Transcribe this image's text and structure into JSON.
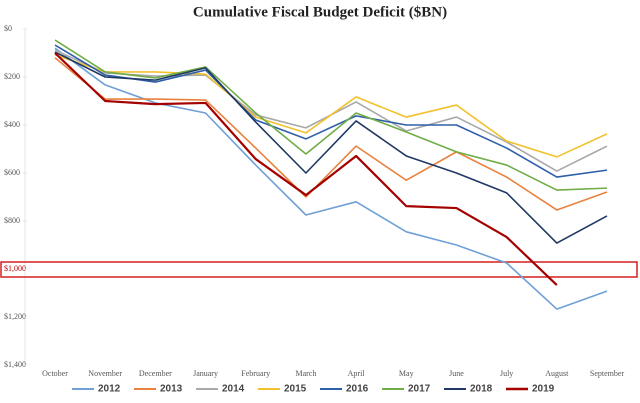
{
  "chart_data": {
    "type": "line",
    "title": "Cumulative Fiscal Budget Deficit ($BN)",
    "categories": [
      "October",
      "November",
      "December",
      "January",
      "February",
      "March",
      "April",
      "May",
      "June",
      "July",
      "August",
      "September"
    ],
    "ylim": [
      0,
      1400
    ],
    "y_inverted": true,
    "yticks": [
      {
        "value": 0,
        "label": "$0"
      },
      {
        "value": 200,
        "label": "$200"
      },
      {
        "value": 400,
        "label": "$400"
      },
      {
        "value": 600,
        "label": "$600"
      },
      {
        "value": 800,
        "label": "$800"
      },
      {
        "value": 1000,
        "label": "$1,000"
      },
      {
        "value": 1200,
        "label": "$1,200"
      },
      {
        "value": 1400,
        "label": "$1,400"
      }
    ],
    "ytick_colors": [
      "#555555",
      "#555555",
      "#555555",
      "#555555",
      "#555555",
      "#c00000",
      "#555555",
      "#555555"
    ],
    "grid": false,
    "legend": "bottom",
    "series": [
      {
        "name": "2012",
        "color": "#6fa0d6",
        "values": [
          80,
          233,
          308,
          350,
          567,
          775,
          720,
          845,
          900,
          975,
          1167,
          1092
        ]
      },
      {
        "name": "2013",
        "color": "#e8823e",
        "values": [
          120,
          292,
          292,
          296,
          496,
          700,
          488,
          630,
          512,
          617,
          754,
          679
        ]
      },
      {
        "name": "2014",
        "color": "#a9a9a9",
        "values": [
          88,
          183,
          196,
          192,
          358,
          412,
          304,
          425,
          367,
          471,
          592,
          488
        ]
      },
      {
        "name": "2015",
        "color": "#f2c12e",
        "values": [
          108,
          179,
          179,
          188,
          367,
          433,
          283,
          367,
          317,
          467,
          533,
          437
        ]
      },
      {
        "name": "2016",
        "color": "#2f5fa8",
        "values": [
          67,
          192,
          221,
          171,
          379,
          458,
          362,
          400,
          400,
          496,
          617,
          588
        ]
      },
      {
        "name": "2017",
        "color": "#70ad47",
        "values": [
          46,
          179,
          204,
          158,
          350,
          521,
          350,
          429,
          512,
          567,
          671,
          663
        ]
      },
      {
        "name": "2018",
        "color": "#1f3864",
        "values": [
          96,
          200,
          213,
          162,
          388,
          600,
          383,
          529,
          600,
          683,
          892,
          779
        ]
      },
      {
        "name": "2019",
        "color": "#a50000",
        "values": [
          100,
          300,
          313,
          308,
          542,
          692,
          529,
          738,
          746,
          867,
          1067,
          null
        ]
      }
    ]
  }
}
